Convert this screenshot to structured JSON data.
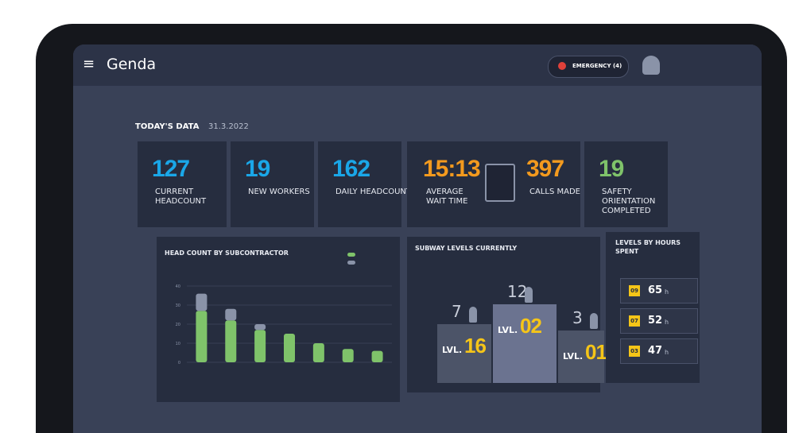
{
  "header": {
    "logo": "Genda",
    "emergency": "EMERGENCY (4)"
  },
  "today": {
    "title": "TODAY'S DATA",
    "date": "31.3.2022"
  },
  "stats": [
    {
      "value": "127",
      "label": "CURRENT HEADCOUNT",
      "color": "#1aa7e8"
    },
    {
      "value": "19",
      "label": "NEW WORKERS",
      "color": "#1aa7e8"
    },
    {
      "value": "162",
      "label": "DAILY HEADCOUNT",
      "color": "#1aa7e8"
    },
    {
      "value": "15:13",
      "label": "AVERAGE WAIT TIME",
      "color": "#f39a1e"
    },
    {
      "value": "397",
      "label": "CALLS MADE",
      "color": "#f39a1e"
    },
    {
      "value": "19",
      "label": "SAFETY ORIENTATION COMPLETED",
      "color": "#7fc36a"
    }
  ],
  "chart_data": {
    "type": "bar",
    "title": "HEAD COUNT BY SUBCONTRACTOR",
    "stacked": true,
    "categories": [
      null,
      null,
      null,
      null,
      null,
      null,
      null
    ],
    "series": [
      {
        "color": "#7fc36a",
        "values": [
          27,
          22,
          17,
          15,
          10,
          7,
          6
        ]
      },
      {
        "color": "#8a93a8",
        "values": [
          9,
          6,
          3,
          0,
          0,
          0,
          0
        ]
      }
    ],
    "ylim": [
      0,
      40
    ],
    "yticks": [
      0,
      10,
      20,
      30,
      40
    ],
    "grid": true
  },
  "levels": {
    "title": "SUBWAY LEVELS CURRENTLY",
    "podium": [
      {
        "count": "7",
        "prefix": "LVL.",
        "level": "16"
      },
      {
        "count": "12",
        "prefix": "LVL.",
        "level": "02"
      },
      {
        "count": "3",
        "prefix": "LVL.",
        "level": "01"
      }
    ]
  },
  "hours": {
    "title": "LEVELS BY HOURS SPENT",
    "rows": [
      {
        "level": "09",
        "hours": "65",
        "unit": "h"
      },
      {
        "level": "07",
        "hours": "52",
        "unit": "h"
      },
      {
        "level": "03",
        "hours": "47",
        "unit": "h"
      }
    ]
  }
}
